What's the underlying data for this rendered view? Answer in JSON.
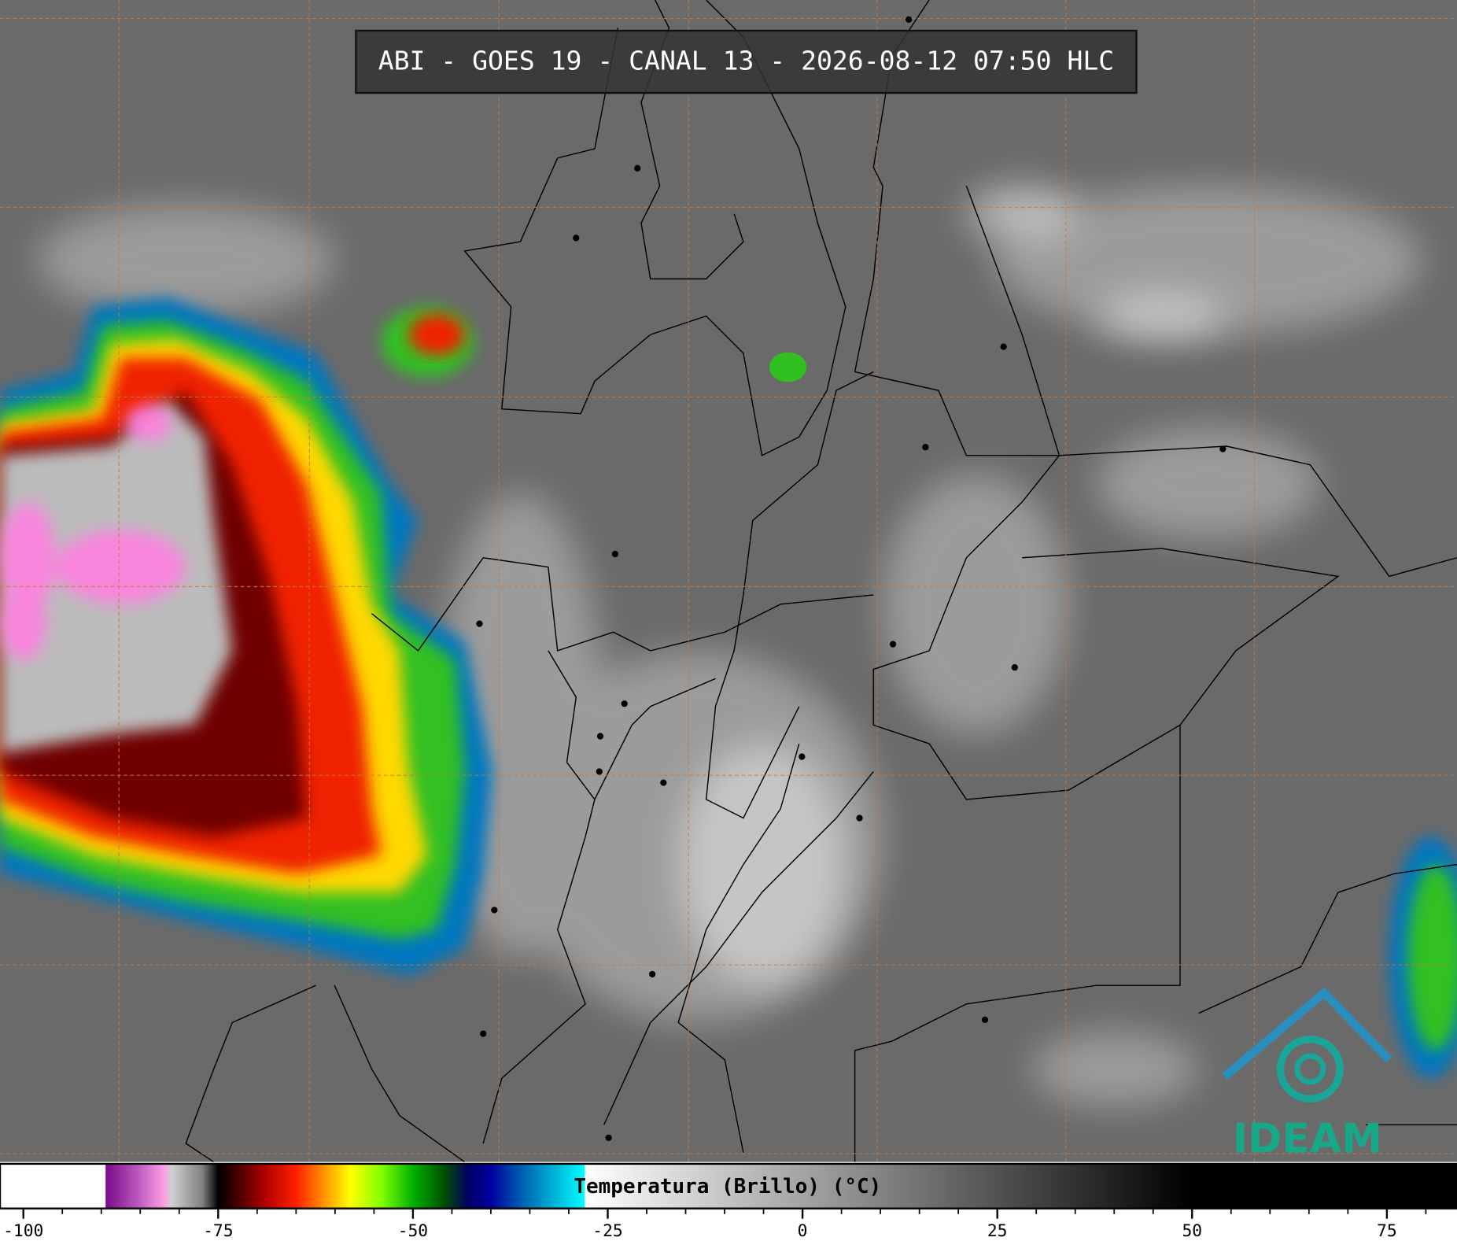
{
  "title": "ABI - GOES 19 - CANAL 13 - 2026-08-12 07:50 HLC",
  "logo": "IDEAM",
  "colorbar": {
    "label": "Temperatura (Brillo) (°C)",
    "xlim": [
      -103,
      84
    ],
    "xticks": [
      -100,
      -75,
      -50,
      -25,
      0,
      25,
      50,
      75
    ],
    "minor_ticks": [
      -95,
      -90,
      -85,
      -80,
      -70,
      -65,
      -60,
      -55,
      -45,
      -40,
      -35,
      -30,
      -20,
      -15,
      -10,
      -5,
      5,
      10,
      15,
      20,
      30,
      35,
      40,
      45,
      55,
      60,
      65,
      70,
      80
    ],
    "colormap": [
      {
        "value": -103,
        "color": "#ffffff"
      },
      {
        "value": -89.5,
        "color": "#ffffff"
      },
      {
        "value": -89.4,
        "color": "#7a0a8a"
      },
      {
        "value": -85,
        "color": "#c060c0"
      },
      {
        "value": -82,
        "color": "#ff9ce6"
      },
      {
        "value": -81,
        "color": "#d0d0d0"
      },
      {
        "value": -77,
        "color": "#808080"
      },
      {
        "value": -75,
        "color": "#000000"
      },
      {
        "value": -73,
        "color": "#3a0000"
      },
      {
        "value": -69,
        "color": "#b00000"
      },
      {
        "value": -65,
        "color": "#ff2000"
      },
      {
        "value": -62,
        "color": "#ff8000"
      },
      {
        "value": -58,
        "color": "#ffff00"
      },
      {
        "value": -54,
        "color": "#80ff00"
      },
      {
        "value": -50,
        "color": "#00b000"
      },
      {
        "value": -46,
        "color": "#005000"
      },
      {
        "value": -43,
        "color": "#000060"
      },
      {
        "value": -40,
        "color": "#0000a0"
      },
      {
        "value": -36,
        "color": "#0060b0"
      },
      {
        "value": -28,
        "color": "#00ffff"
      },
      {
        "value": -27.9,
        "color": "#ffffff"
      },
      {
        "value": 50,
        "color": "#000000"
      },
      {
        "value": 84,
        "color": "#000000"
      }
    ]
  }
}
